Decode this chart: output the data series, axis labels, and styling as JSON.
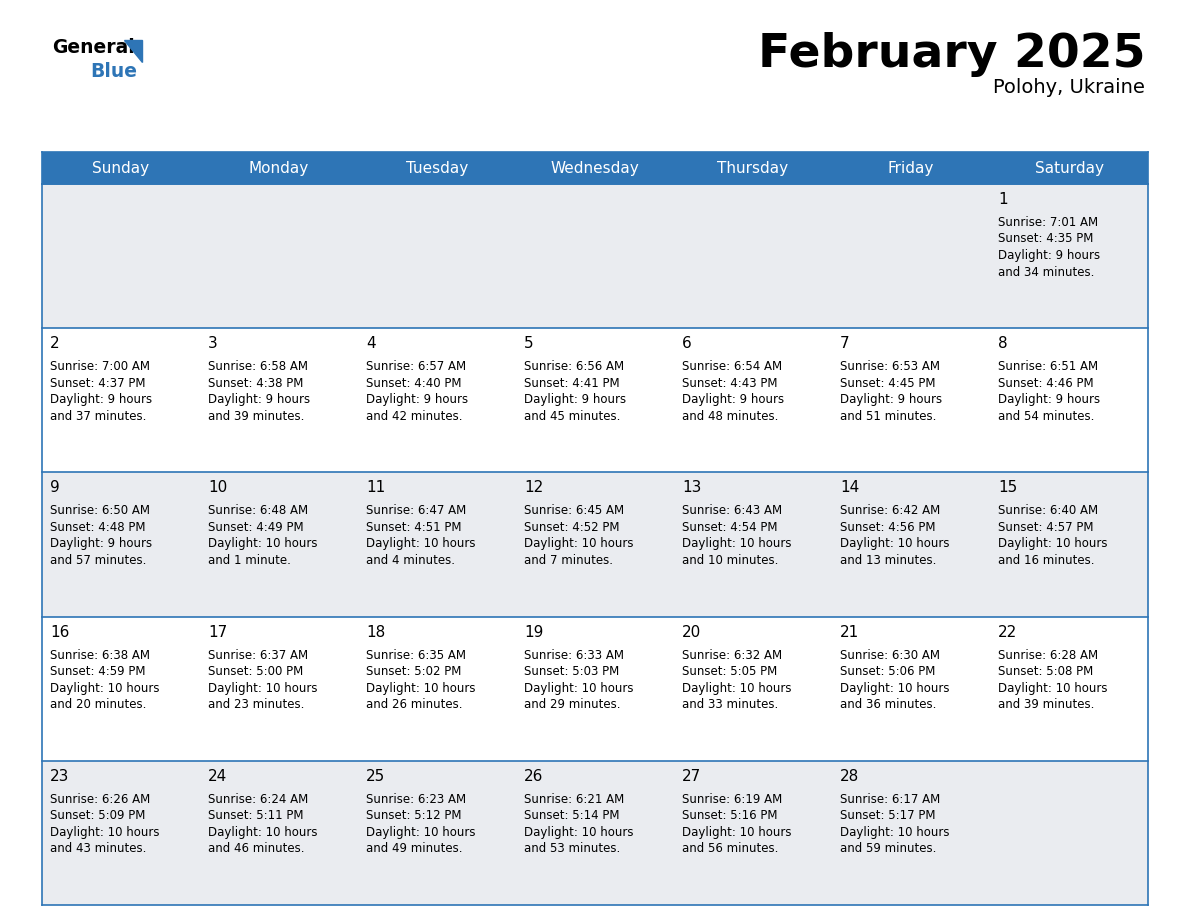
{
  "title": "February 2025",
  "subtitle": "Polohy, Ukraine",
  "header_color": "#2E75B6",
  "header_text_color": "#FFFFFF",
  "cell_bg_row0": "#EAECF0",
  "cell_bg_row1": "#FFFFFF",
  "cell_bg_row2": "#EAECF0",
  "cell_bg_row3": "#FFFFFF",
  "cell_bg_row4": "#EAECF0",
  "border_color": "#2E75B6",
  "day_headers": [
    "Sunday",
    "Monday",
    "Tuesday",
    "Wednesday",
    "Thursday",
    "Friday",
    "Saturday"
  ],
  "title_color": "#000000",
  "subtitle_color": "#000000",
  "day_number_color": "#000000",
  "info_color": "#000000",
  "logo_general_color": "#000000",
  "logo_blue_color": "#2E75B6",
  "calendar_data": [
    [
      null,
      null,
      null,
      null,
      null,
      null,
      {
        "day": 1,
        "sunrise": "7:01 AM",
        "sunset": "4:35 PM",
        "daylight": "9 hours and 34 minutes."
      }
    ],
    [
      {
        "day": 2,
        "sunrise": "7:00 AM",
        "sunset": "4:37 PM",
        "daylight": "9 hours and 37 minutes."
      },
      {
        "day": 3,
        "sunrise": "6:58 AM",
        "sunset": "4:38 PM",
        "daylight": "9 hours and 39 minutes."
      },
      {
        "day": 4,
        "sunrise": "6:57 AM",
        "sunset": "4:40 PM",
        "daylight": "9 hours and 42 minutes."
      },
      {
        "day": 5,
        "sunrise": "6:56 AM",
        "sunset": "4:41 PM",
        "daylight": "9 hours and 45 minutes."
      },
      {
        "day": 6,
        "sunrise": "6:54 AM",
        "sunset": "4:43 PM",
        "daylight": "9 hours and 48 minutes."
      },
      {
        "day": 7,
        "sunrise": "6:53 AM",
        "sunset": "4:45 PM",
        "daylight": "9 hours and 51 minutes."
      },
      {
        "day": 8,
        "sunrise": "6:51 AM",
        "sunset": "4:46 PM",
        "daylight": "9 hours and 54 minutes."
      }
    ],
    [
      {
        "day": 9,
        "sunrise": "6:50 AM",
        "sunset": "4:48 PM",
        "daylight": "9 hours and 57 minutes."
      },
      {
        "day": 10,
        "sunrise": "6:48 AM",
        "sunset": "4:49 PM",
        "daylight": "10 hours and 1 minute."
      },
      {
        "day": 11,
        "sunrise": "6:47 AM",
        "sunset": "4:51 PM",
        "daylight": "10 hours and 4 minutes."
      },
      {
        "day": 12,
        "sunrise": "6:45 AM",
        "sunset": "4:52 PM",
        "daylight": "10 hours and 7 minutes."
      },
      {
        "day": 13,
        "sunrise": "6:43 AM",
        "sunset": "4:54 PM",
        "daylight": "10 hours and 10 minutes."
      },
      {
        "day": 14,
        "sunrise": "6:42 AM",
        "sunset": "4:56 PM",
        "daylight": "10 hours and 13 minutes."
      },
      {
        "day": 15,
        "sunrise": "6:40 AM",
        "sunset": "4:57 PM",
        "daylight": "10 hours and 16 minutes."
      }
    ],
    [
      {
        "day": 16,
        "sunrise": "6:38 AM",
        "sunset": "4:59 PM",
        "daylight": "10 hours and 20 minutes."
      },
      {
        "day": 17,
        "sunrise": "6:37 AM",
        "sunset": "5:00 PM",
        "daylight": "10 hours and 23 minutes."
      },
      {
        "day": 18,
        "sunrise": "6:35 AM",
        "sunset": "5:02 PM",
        "daylight": "10 hours and 26 minutes."
      },
      {
        "day": 19,
        "sunrise": "6:33 AM",
        "sunset": "5:03 PM",
        "daylight": "10 hours and 29 minutes."
      },
      {
        "day": 20,
        "sunrise": "6:32 AM",
        "sunset": "5:05 PM",
        "daylight": "10 hours and 33 minutes."
      },
      {
        "day": 21,
        "sunrise": "6:30 AM",
        "sunset": "5:06 PM",
        "daylight": "10 hours and 36 minutes."
      },
      {
        "day": 22,
        "sunrise": "6:28 AM",
        "sunset": "5:08 PM",
        "daylight": "10 hours and 39 minutes."
      }
    ],
    [
      {
        "day": 23,
        "sunrise": "6:26 AM",
        "sunset": "5:09 PM",
        "daylight": "10 hours and 43 minutes."
      },
      {
        "day": 24,
        "sunrise": "6:24 AM",
        "sunset": "5:11 PM",
        "daylight": "10 hours and 46 minutes."
      },
      {
        "day": 25,
        "sunrise": "6:23 AM",
        "sunset": "5:12 PM",
        "daylight": "10 hours and 49 minutes."
      },
      {
        "day": 26,
        "sunrise": "6:21 AM",
        "sunset": "5:14 PM",
        "daylight": "10 hours and 53 minutes."
      },
      {
        "day": 27,
        "sunrise": "6:19 AM",
        "sunset": "5:16 PM",
        "daylight": "10 hours and 56 minutes."
      },
      {
        "day": 28,
        "sunrise": "6:17 AM",
        "sunset": "5:17 PM",
        "daylight": "10 hours and 59 minutes."
      },
      null
    ]
  ]
}
